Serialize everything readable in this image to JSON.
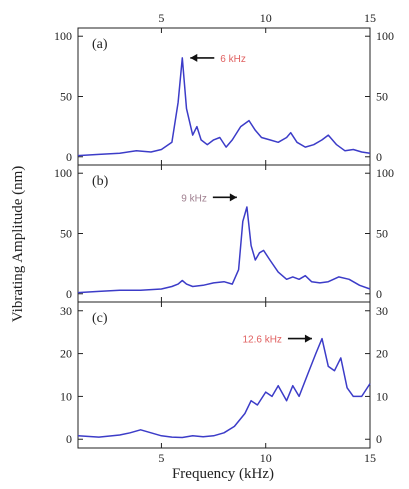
{
  "chart_data": {
    "type": "line",
    "xlabel": "Frequency (kHz)",
    "ylabel": "Vibrating Amplitude (nm)",
    "xlim": [
      1,
      15
    ],
    "x_ticks": [
      5,
      10,
      15
    ],
    "grid": false,
    "line_color": "#3c3cc8",
    "panels": [
      {
        "label": "(a)",
        "ylim": [
          0,
          100
        ],
        "y_ticks": [
          0,
          50,
          100
        ],
        "annotation": {
          "text": "6 kHz",
          "x": 6,
          "y": 82,
          "color": "#e06060"
        },
        "series": [
          {
            "x": [
              1,
              2,
              3,
              3.8,
              4.5,
              5,
              5.5,
              5.8,
              6.0,
              6.2,
              6.5,
              6.7,
              6.9,
              7.2,
              7.5,
              7.8,
              8.1,
              8.4,
              8.8,
              9.2,
              9.5,
              9.8,
              10.2,
              10.6,
              11.0,
              11.2,
              11.5,
              11.9,
              12.3,
              12.7,
              13.0,
              13.4,
              13.8,
              14.2,
              14.6,
              15
            ],
            "y": [
              1,
              2,
              3,
              5,
              4,
              6,
              12,
              45,
              82,
              40,
              18,
              25,
              14,
              10,
              14,
              16,
              8,
              14,
              25,
              30,
              22,
              16,
              14,
              12,
              16,
              20,
              12,
              8,
              10,
              14,
              18,
              10,
              5,
              6,
              4,
              3
            ]
          }
        ]
      },
      {
        "label": "(b)",
        "ylim": [
          0,
          100
        ],
        "y_ticks": [
          0,
          50,
          100
        ],
        "annotation": {
          "text": "9 kHz",
          "x": 9,
          "y": 80,
          "color": "#a08090"
        },
        "series": [
          {
            "x": [
              1,
              2,
              3,
              4,
              5,
              5.5,
              5.8,
              6.0,
              6.2,
              6.5,
              7.0,
              7.5,
              8.0,
              8.4,
              8.7,
              8.9,
              9.1,
              9.3,
              9.5,
              9.7,
              9.9,
              10.2,
              10.6,
              11.0,
              11.3,
              11.6,
              11.9,
              12.2,
              12.6,
              13.0,
              13.5,
              14.0,
              14.5,
              15
            ],
            "y": [
              1,
              2,
              3,
              3,
              4,
              6,
              8,
              11,
              8,
              6,
              7,
              9,
              10,
              8,
              20,
              60,
              72,
              40,
              28,
              34,
              36,
              28,
              18,
              12,
              14,
              12,
              15,
              10,
              9,
              10,
              14,
              12,
              7,
              4
            ]
          }
        ]
      },
      {
        "label": "(c)",
        "ylim": [
          0,
          30
        ],
        "y_ticks": [
          0,
          10,
          20,
          30
        ],
        "annotation": {
          "text": "12.6 kHz",
          "x": 12.6,
          "y": 23.5,
          "color": "#e06060"
        },
        "series": [
          {
            "x": [
              1,
              2,
              3,
              3.5,
              4,
              4.5,
              5,
              5.5,
              6,
              6.5,
              7,
              7.5,
              8,
              8.5,
              9.0,
              9.3,
              9.6,
              10.0,
              10.3,
              10.6,
              11.0,
              11.3,
              11.6,
              12.0,
              12.4,
              12.7,
              13.0,
              13.3,
              13.6,
              13.9,
              14.2,
              14.6,
              15
            ],
            "y": [
              0.8,
              0.5,
              1.0,
              1.5,
              2.2,
              1.5,
              0.8,
              0.5,
              0.4,
              0.8,
              0.6,
              0.8,
              1.5,
              3.0,
              6.0,
              9.0,
              8.0,
              11.0,
              10.0,
              12.5,
              9.0,
              12.5,
              10.0,
              15.0,
              20.0,
              23.5,
              17.0,
              16.0,
              19.0,
              12.0,
              10.0,
              10.0,
              13.0
            ]
          }
        ]
      }
    ]
  }
}
